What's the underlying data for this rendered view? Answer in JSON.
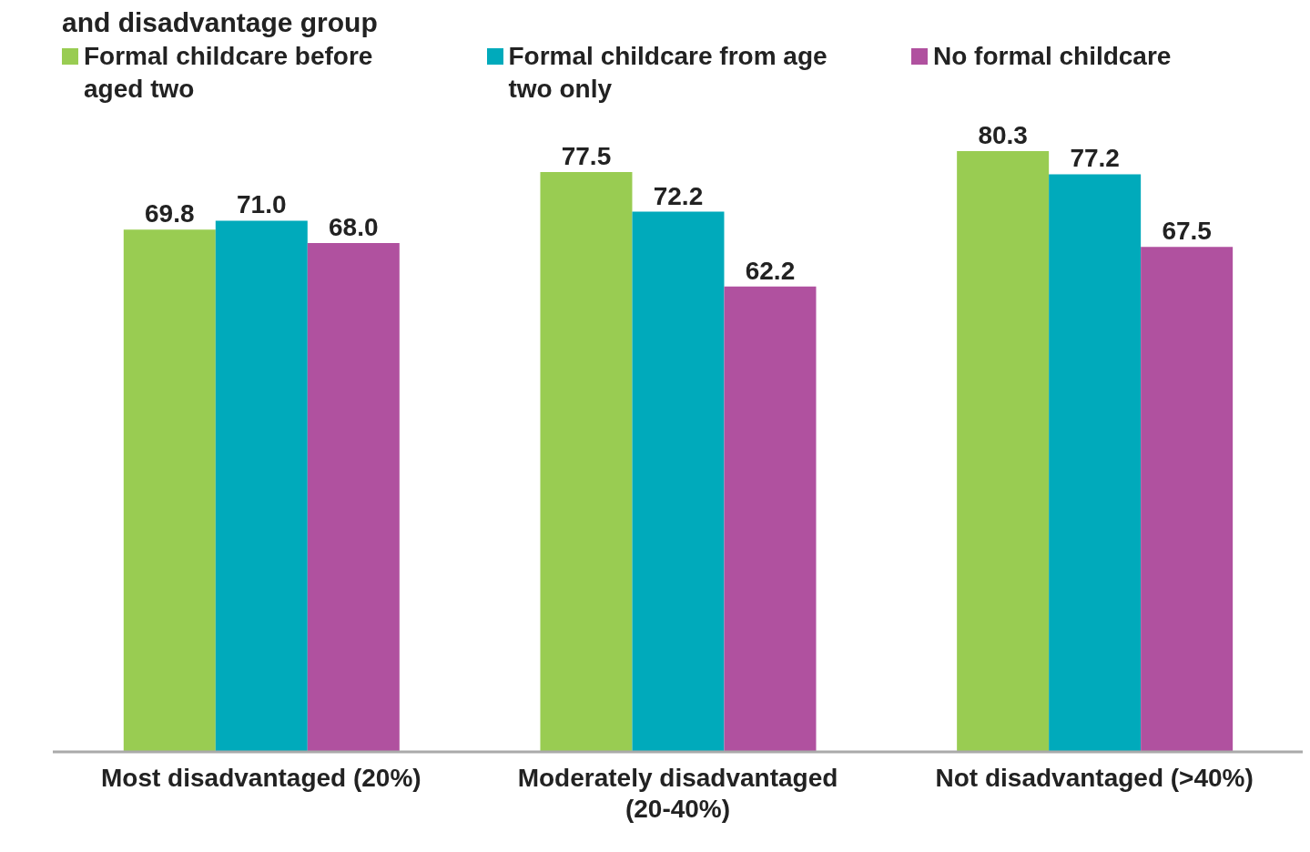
{
  "chart_data": {
    "type": "bar",
    "title": "and disadvantage group",
    "categories": [
      "Most disadvantaged (20%)",
      "Moderately disadvantaged (20-40%)",
      "Not disadvantaged (>40%)"
    ],
    "series": [
      {
        "name": "Formal childcare before aged two",
        "color": "#99cc52",
        "values": [
          69.8,
          77.5,
          80.3
        ],
        "value_labels": [
          "69.8",
          "77.5",
          "80.3"
        ]
      },
      {
        "name": "Formal childcare from age two only",
        "color": "#00aabb",
        "values": [
          71.0,
          72.2,
          77.2
        ],
        "value_labels": [
          "71.0",
          "72.2",
          "77.2"
        ]
      },
      {
        "name": "No formal childcare",
        "color": "#b0519f",
        "values": [
          68.0,
          62.2,
          67.5
        ],
        "value_labels": [
          "68.0",
          "62.2",
          "67.5"
        ]
      }
    ],
    "legend": "top",
    "grid": false
  }
}
